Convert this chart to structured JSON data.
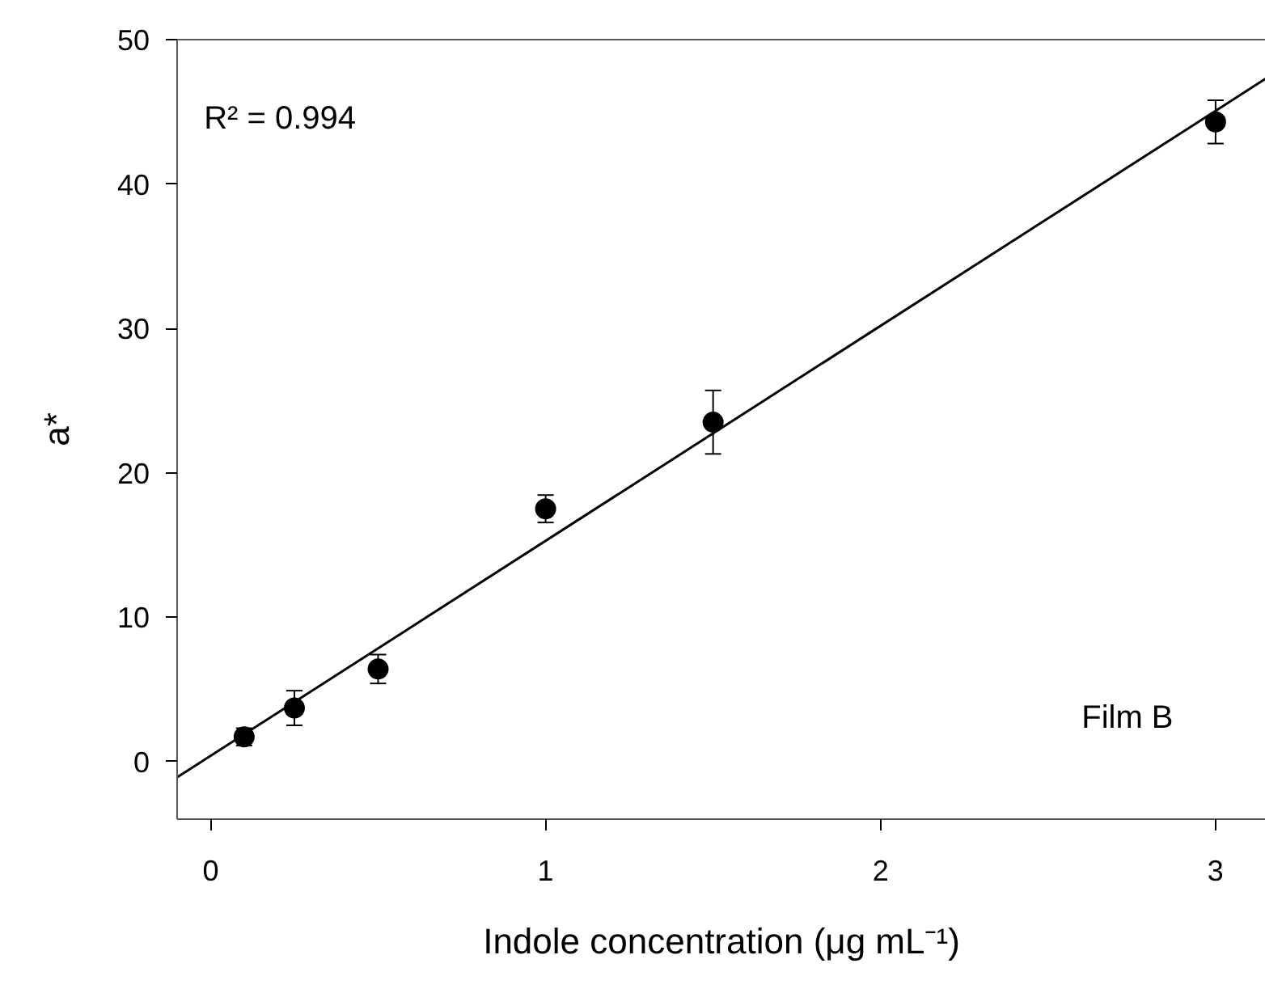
{
  "chart_data": {
    "type": "scatter",
    "xlabel": "Indole concentration (μg mL⁻¹)",
    "ylabel": "a*",
    "x": [
      0.1,
      0.25,
      0.5,
      1,
      1.5,
      3
    ],
    "series": [
      {
        "color": "#000000",
        "marker": "circle",
        "values": [
          1.7,
          3.7,
          6.4,
          17.5,
          23.5,
          44.3
        ],
        "errors": [
          0.6,
          1.2,
          1.0,
          0.95,
          2.2,
          1.5
        ]
      },
      {
        "type": "line",
        "marker": "none",
        "color": "#000000",
        "x": [
          -0.1,
          3.15
        ],
        "values": [
          -1.1,
          47.3
        ]
      }
    ],
    "annotations": [
      "R² = 0.994",
      "Film B"
    ],
    "xlim": [
      -0.1,
      3.15
    ],
    "ylim": [
      -4,
      50
    ],
    "xticks": [
      0,
      1,
      2,
      3
    ],
    "yticks": [
      0,
      10,
      20,
      30,
      40,
      50
    ],
    "grid": false
  }
}
